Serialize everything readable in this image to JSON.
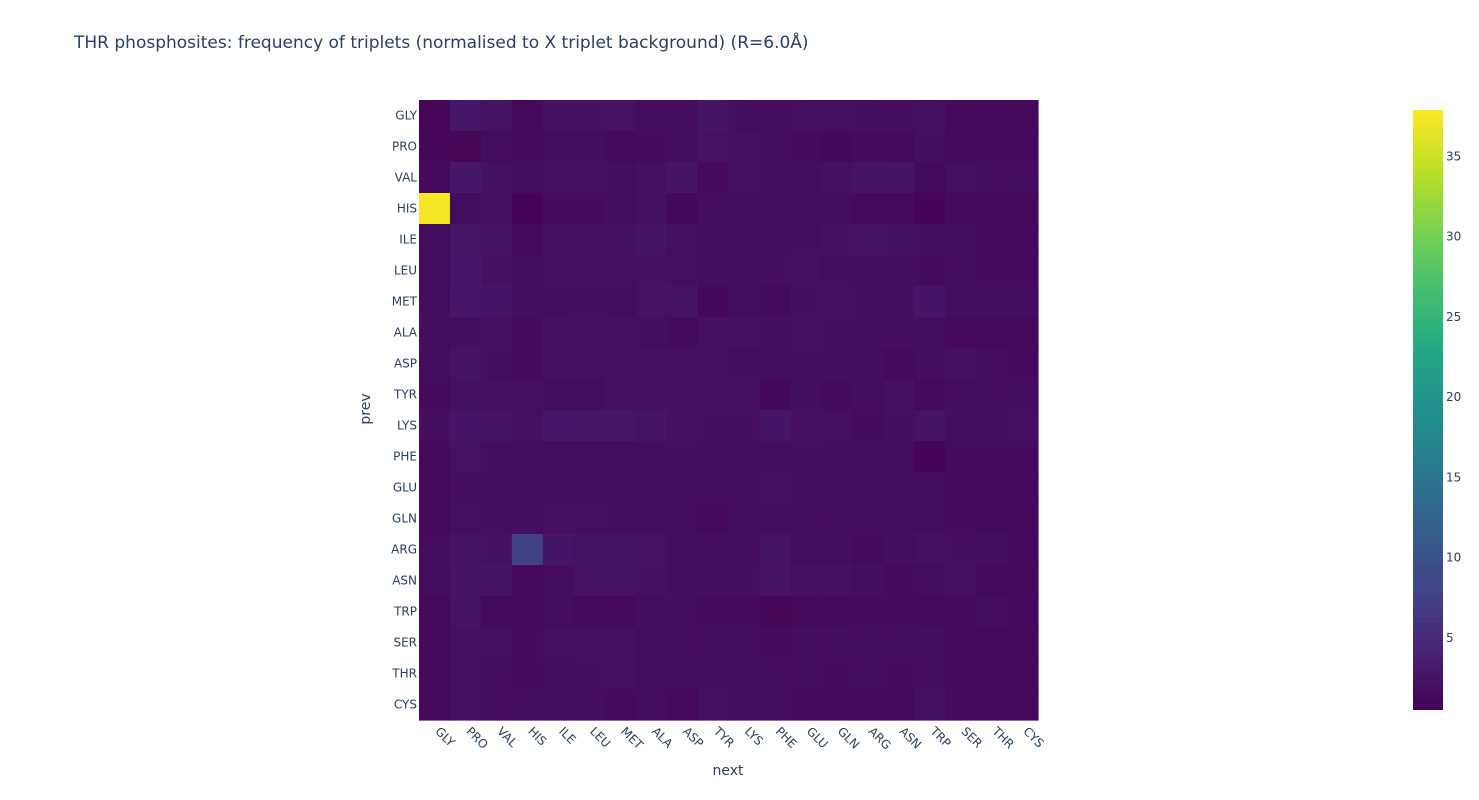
{
  "chart_data": {
    "type": "heatmap",
    "title": "THR phosphosites: frequency of triplets (normalised to X triplet background) (R=6.0Å)",
    "xlabel": "next",
    "ylabel": "prev",
    "x": [
      "GLY",
      "PRO",
      "VAL",
      "HIS",
      "ILE",
      "LEU",
      "MET",
      "ALA",
      "ASP",
      "TYR",
      "LYS",
      "PHE",
      "GLU",
      "GLN",
      "ARG",
      "ASN",
      "TRP",
      "SER",
      "THR",
      "CYS"
    ],
    "y": [
      "GLY",
      "PRO",
      "VAL",
      "HIS",
      "ILE",
      "LEU",
      "MET",
      "ALA",
      "ASP",
      "TYR",
      "LYS",
      "PHE",
      "GLU",
      "GLN",
      "ARG",
      "ASN",
      "TRP",
      "SER",
      "THR",
      "CYS"
    ],
    "z": [
      [
        1.0,
        2.8,
        2.3,
        1.2,
        2.0,
        2.0,
        2.2,
        1.6,
        1.6,
        2.4,
        1.8,
        1.7,
        1.9,
        1.9,
        1.8,
        1.7,
        1.9,
        1.4,
        1.4,
        1.4
      ],
      [
        1.1,
        1.0,
        1.6,
        1.3,
        1.6,
        1.7,
        1.4,
        1.5,
        1.6,
        2.2,
        2.0,
        1.6,
        1.5,
        1.1,
        1.5,
        1.3,
        1.7,
        1.4,
        1.3,
        1.5
      ],
      [
        1.5,
        2.9,
        2.1,
        1.6,
        1.9,
        1.9,
        1.8,
        2.1,
        2.4,
        1.2,
        1.9,
        1.7,
        1.8,
        2.1,
        2.3,
        2.3,
        1.4,
        1.9,
        1.6,
        1.6
      ],
      [
        37.5,
        1.6,
        1.9,
        0.7,
        1.5,
        1.5,
        1.8,
        2.0,
        1.1,
        1.7,
        1.8,
        1.6,
        1.7,
        1.6,
        1.2,
        1.3,
        0.9,
        1.2,
        1.5,
        1.3
      ],
      [
        1.6,
        2.7,
        2.4,
        1.4,
        2.0,
        1.9,
        2.1,
        2.3,
        1.9,
        1.8,
        1.8,
        1.7,
        1.8,
        2.0,
        2.2,
        2.1,
        1.8,
        1.8,
        1.4,
        1.5
      ],
      [
        1.6,
        2.8,
        2.0,
        1.7,
        1.9,
        1.9,
        1.9,
        2.1,
        1.9,
        1.6,
        1.7,
        1.7,
        2.0,
        1.8,
        1.8,
        1.7,
        1.5,
        1.6,
        1.5,
        1.5
      ],
      [
        1.6,
        2.9,
        2.5,
        1.8,
        1.8,
        1.8,
        1.6,
        2.2,
        2.3,
        1.1,
        1.8,
        1.4,
        1.8,
        1.9,
        1.8,
        1.8,
        2.6,
        1.8,
        1.6,
        1.8
      ],
      [
        1.7,
        1.8,
        1.9,
        1.5,
        2.0,
        1.9,
        1.9,
        1.7,
        1.5,
        2.0,
        2.0,
        1.8,
        1.9,
        1.7,
        1.7,
        1.7,
        1.8,
        1.3,
        1.3,
        1.4
      ],
      [
        1.6,
        2.3,
        1.8,
        1.5,
        2.1,
        2.0,
        2.1,
        2.0,
        2.0,
        1.9,
        1.8,
        1.8,
        1.8,
        1.7,
        1.8,
        1.3,
        1.6,
        2.1,
        1.6,
        1.5
      ],
      [
        1.5,
        2.1,
        2.0,
        1.9,
        1.6,
        1.6,
        2.0,
        2.1,
        2.0,
        1.9,
        1.9,
        1.1,
        1.8,
        1.5,
        1.7,
        2.0,
        1.3,
        1.6,
        1.6,
        1.6
      ],
      [
        1.7,
        2.6,
        2.4,
        1.9,
        2.8,
        2.7,
        2.7,
        2.4,
        2.0,
        1.8,
        1.8,
        2.5,
        2.0,
        1.9,
        1.5,
        1.8,
        2.3,
        1.8,
        1.8,
        1.9
      ],
      [
        1.4,
        2.2,
        1.8,
        1.6,
        1.6,
        1.8,
        1.8,
        1.8,
        1.8,
        1.7,
        1.8,
        1.7,
        1.8,
        1.7,
        1.8,
        1.8,
        0.9,
        1.5,
        1.5,
        1.5
      ],
      [
        1.4,
        1.7,
        1.8,
        1.6,
        1.8,
        1.8,
        1.8,
        1.6,
        1.7,
        1.6,
        1.6,
        1.9,
        1.8,
        1.6,
        1.6,
        1.6,
        1.6,
        1.5,
        1.4,
        1.5
      ],
      [
        1.4,
        1.9,
        1.8,
        1.7,
        1.9,
        1.9,
        1.8,
        1.7,
        1.6,
        1.3,
        1.8,
        1.8,
        1.6,
        1.6,
        1.6,
        1.6,
        1.6,
        1.5,
        1.4,
        1.4
      ],
      [
        1.6,
        2.3,
        2.1,
        7.8,
        2.6,
        2.3,
        2.3,
        2.2,
        1.7,
        1.7,
        1.6,
        2.3,
        1.8,
        1.7,
        1.4,
        1.7,
        2.1,
        1.7,
        1.8,
        1.5
      ],
      [
        1.6,
        2.4,
        2.4,
        1.3,
        1.7,
        2.2,
        2.2,
        2.0,
        1.8,
        1.8,
        1.8,
        2.4,
        2.0,
        2.0,
        1.7,
        1.5,
        1.6,
        1.9,
        1.4,
        1.4
      ],
      [
        1.2,
        2.3,
        1.4,
        1.4,
        1.6,
        1.4,
        1.2,
        1.7,
        1.6,
        1.5,
        1.5,
        1.0,
        1.4,
        1.4,
        1.5,
        1.5,
        1.4,
        1.3,
        1.6,
        1.5
      ],
      [
        1.5,
        2.0,
        1.9,
        1.5,
        1.9,
        1.9,
        1.9,
        1.6,
        1.6,
        1.6,
        1.6,
        1.5,
        1.6,
        1.6,
        1.6,
        1.6,
        1.6,
        1.5,
        1.4,
        1.4
      ],
      [
        1.5,
        2.0,
        1.6,
        1.5,
        1.6,
        1.8,
        1.9,
        1.6,
        1.7,
        1.6,
        1.6,
        1.6,
        1.6,
        1.5,
        1.6,
        1.5,
        1.6,
        1.5,
        1.4,
        1.4
      ],
      [
        1.5,
        1.9,
        1.6,
        1.6,
        1.6,
        1.6,
        1.4,
        1.6,
        1.2,
        1.9,
        1.6,
        1.6,
        1.5,
        1.5,
        1.3,
        1.3,
        2.1,
        1.5,
        1.4,
        1.4
      ]
    ],
    "zmin": 0.5,
    "zmax": 37.9,
    "colorscale": "viridis",
    "colorbar_ticks": [
      5,
      10,
      15,
      20,
      25,
      30,
      35
    ],
    "grid": false,
    "colorbar_position": "right"
  }
}
